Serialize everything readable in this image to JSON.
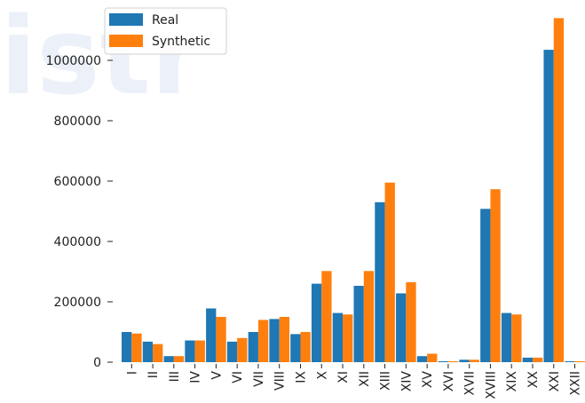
{
  "chart_data": {
    "type": "bar",
    "categories": [
      "I",
      "II",
      "III",
      "IV",
      "V",
      "VI",
      "VII",
      "VIII",
      "IX",
      "X",
      "XI",
      "XII",
      "XIII",
      "XIV",
      "XV",
      "XVI",
      "XVII",
      "XVIII",
      "XIX",
      "XX",
      "XXI",
      "XXII"
    ],
    "series": [
      {
        "name": "Real",
        "color": "#1f77b4",
        "values": [
          100000,
          68000,
          20000,
          72000,
          178000,
          68000,
          100000,
          143000,
          93000,
          260000,
          163000,
          253000,
          530000,
          228000,
          20000,
          2000,
          8000,
          508000,
          163000,
          15000,
          1035000,
          2000
        ]
      },
      {
        "name": "Synthetic",
        "color": "#ff7f0e",
        "values": [
          95000,
          60000,
          20000,
          72000,
          150000,
          80000,
          140000,
          150000,
          100000,
          302000,
          158000,
          302000,
          595000,
          265000,
          28000,
          3000,
          8000,
          573000,
          158000,
          15000,
          1140000,
          3000
        ]
      }
    ],
    "yticks": [
      "0",
      "200000",
      "400000",
      "600000",
      "800000",
      "1000000"
    ],
    "ylim": [
      0,
      1150000
    ],
    "legend_position": "top-left",
    "grid": false
  },
  "watermark": "istr"
}
